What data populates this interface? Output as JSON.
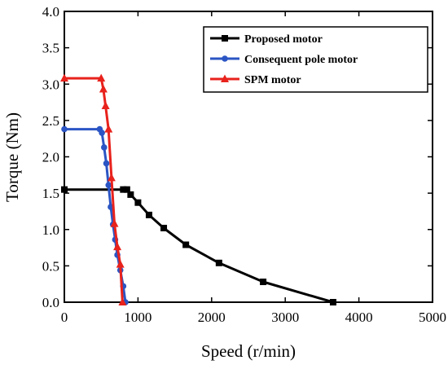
{
  "chart_data": {
    "type": "line",
    "xlabel": "Speed (r/min)",
    "ylabel": "Torque (Nm)",
    "xlim": [
      0,
      5000
    ],
    "ylim": [
      0,
      4.0
    ],
    "xticks": [
      0,
      1000,
      2000,
      3000,
      4000,
      5000
    ],
    "yticks": [
      0.0,
      0.5,
      1.0,
      1.5,
      2.0,
      2.5,
      3.0,
      3.5,
      4.0
    ],
    "xtick_labels": [
      "0",
      "1000",
      "2000",
      "3000",
      "4000",
      "5000"
    ],
    "ytick_labels": [
      "0.0",
      "0.5",
      "1.0",
      "1.5",
      "2.0",
      "2.5",
      "3.0",
      "3.5",
      "4.0"
    ],
    "grid": false,
    "legend_position": "top-right",
    "series": [
      {
        "name": "Proposed motor",
        "color": "#000000",
        "marker": "square",
        "x": [
          0,
          800,
          850,
          900,
          1000,
          1150,
          1350,
          1650,
          2100,
          2700,
          3650
        ],
        "y": [
          1.55,
          1.55,
          1.55,
          1.48,
          1.37,
          1.2,
          1.02,
          0.79,
          0.54,
          0.28,
          0.0
        ]
      },
      {
        "name": "Consequent pole motor",
        "color": "#2b55c4",
        "marker": "circle",
        "x": [
          0,
          480,
          510,
          540,
          570,
          600,
          630,
          660,
          690,
          720,
          760,
          800,
          830
        ],
        "y": [
          2.38,
          2.38,
          2.33,
          2.13,
          1.91,
          1.61,
          1.31,
          1.07,
          0.86,
          0.65,
          0.44,
          0.22,
          0.0
        ]
      },
      {
        "name": "SPM motor",
        "color": "#e8221c",
        "marker": "triangle",
        "x": [
          0,
          500,
          530,
          560,
          600,
          640,
          680,
          720,
          760,
          790
        ],
        "y": [
          3.08,
          3.08,
          2.93,
          2.7,
          2.38,
          1.71,
          1.08,
          0.76,
          0.52,
          0.0
        ]
      }
    ]
  }
}
